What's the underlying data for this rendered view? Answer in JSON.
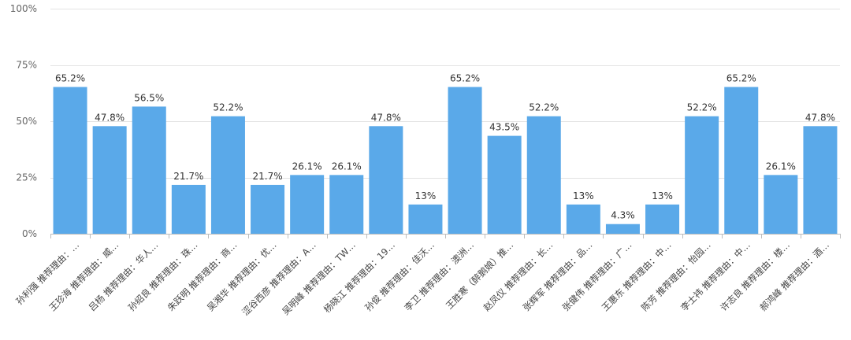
{
  "chart_data": {
    "type": "bar",
    "categories": [
      "孙利强 推荐理由：…",
      "王珍海 推荐理由：威…",
      "吕杨 推荐理由：华人…",
      "孙绍良 推荐理由：珠…",
      "朱跃明 推荐理由：商…",
      "吴湘华 推荐理由：优…",
      "涩谷西彦 推荐理由：A…",
      "吴明峰 推荐理由：TW…",
      "杨晓江 推荐理由：19…",
      "孙俊 推荐理由：佳沃…",
      "李卫 推荐理由：澳洲…",
      "王胜寒（醉鹅娘）推…",
      "赵凤仪 推荐理由：长…",
      "张辉军 推荐理由：品…",
      "张健伟 推荐理由：广…",
      "王惠东 推荐理由：中…",
      "陈芳 推荐理由：怡园…",
      "李士祎 推荐理由：中…",
      "许志良 推荐理由：楼…",
      "郝鸿峰 推荐理由：酒…"
    ],
    "values": [
      65.2,
      47.8,
      56.5,
      21.7,
      52.2,
      21.7,
      26.1,
      26.1,
      47.8,
      13,
      65.2,
      43.5,
      52.2,
      13,
      4.3,
      13,
      52.2,
      65.2,
      26.1,
      47.8
    ],
    "data_labels": [
      "65.2%",
      "47.8%",
      "56.5%",
      "21.7%",
      "52.2%",
      "21.7%",
      "26.1%",
      "26.1%",
      "47.8%",
      "13%",
      "65.2%",
      "43.5%",
      "52.2%",
      "13%",
      "4.3%",
      "13%",
      "52.2%",
      "65.2%",
      "26.1%",
      "47.8%"
    ],
    "yticks": [
      0,
      25,
      50,
      75,
      100
    ],
    "ytick_labels": [
      "0%",
      "25%",
      "50%",
      "75%",
      "100%"
    ],
    "ylim": [
      0,
      100
    ],
    "grid": true,
    "bar_color": "#5aa9e9",
    "title": "",
    "xlabel": "",
    "ylabel": ""
  }
}
